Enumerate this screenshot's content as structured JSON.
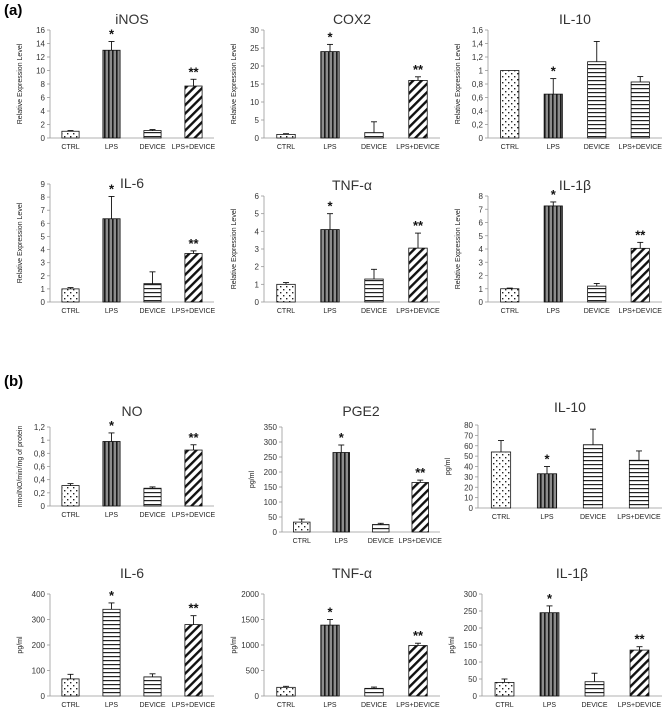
{
  "panels": [
    {
      "label": "(a)"
    },
    {
      "label": "(b)"
    }
  ],
  "chart_data": [
    {
      "type": "bar",
      "panel": "(a)",
      "title": "iNOS",
      "ylabel": "Relative Expression Level",
      "categories": [
        "CTRL",
        "LPS",
        "DEVICE",
        "LPS+DEVICE"
      ],
      "values": [
        1,
        13,
        1.1,
        7.7
      ],
      "errors": [
        0.1,
        1.3,
        0.15,
        1.0
      ],
      "significance": [
        "",
        "*",
        "",
        "**"
      ],
      "ylim": [
        0,
        16
      ],
      "yticks": [
        0,
        2,
        4,
        6,
        8,
        10,
        12,
        14,
        16
      ],
      "yticklabels": [
        "0",
        "2",
        "4",
        "6",
        "8",
        "10",
        "12",
        "14",
        "16"
      ],
      "patterns": [
        "dots",
        "vstripe",
        "hstripe",
        "diag"
      ]
    },
    {
      "type": "bar",
      "panel": "(a)",
      "title": "COX2",
      "ylabel": "Relative Expression Level",
      "categories": [
        "CTRL",
        "LPS",
        "DEVICE",
        "LPS+DEVICE"
      ],
      "values": [
        1,
        24,
        1.5,
        16
      ],
      "errors": [
        0.2,
        2.0,
        3.0,
        1.0
      ],
      "significance": [
        "",
        "*",
        "",
        "**"
      ],
      "ylim": [
        0,
        30
      ],
      "yticks": [
        0,
        5,
        10,
        15,
        20,
        25,
        30
      ],
      "yticklabels": [
        "0",
        "5",
        "10",
        "15",
        "20",
        "25",
        "30"
      ],
      "patterns": [
        "dots",
        "vstripe",
        "hstripe",
        "diag"
      ]
    },
    {
      "type": "bar",
      "panel": "(a)",
      "title": "IL-10",
      "ylabel": "Relative Expression Level",
      "categories": [
        "CTRL",
        "LPS",
        "DEVICE",
        "LPS+DEVICE"
      ],
      "values": [
        1,
        0.65,
        1.13,
        0.83
      ],
      "errors": [
        0.0,
        0.23,
        0.3,
        0.08
      ],
      "significance": [
        "",
        "*",
        "",
        ""
      ],
      "ylim": [
        0,
        1.6
      ],
      "yticks": [
        0,
        0.2,
        0.4,
        0.6,
        0.8,
        1,
        1.2,
        1.4,
        1.6
      ],
      "yticklabels": [
        "0",
        "0,2",
        "0,4",
        "0,6",
        "0,8",
        "1",
        "1,2",
        "1,4",
        "1,6"
      ],
      "patterns": [
        "dots",
        "vstripe",
        "hstripe",
        "hstripe"
      ]
    },
    {
      "type": "bar",
      "panel": "(a)",
      "title": "IL-6",
      "ylabel": "Relative Expression Level",
      "categories": [
        "CTRL",
        "LPS",
        "DEVICE",
        "LPS+DEVICE"
      ],
      "values": [
        1,
        6.35,
        1.4,
        3.7
      ],
      "errors": [
        0.1,
        1.7,
        0.9,
        0.2
      ],
      "significance": [
        "",
        "*",
        "",
        "**"
      ],
      "ylim": [
        0,
        9
      ],
      "yticks": [
        0,
        1,
        2,
        3,
        4,
        5,
        6,
        7,
        8,
        9
      ],
      "yticklabels": [
        "0",
        "1",
        "2",
        "3",
        "4",
        "5",
        "6",
        "7",
        "8",
        "9"
      ],
      "patterns": [
        "dots",
        "vstripe",
        "hstripe",
        "diag"
      ]
    },
    {
      "type": "bar",
      "panel": "(a)",
      "title": "TNF-α",
      "ylabel": "Relative Expression Level",
      "categories": [
        "CTRL",
        "LPS",
        "DEVICE",
        "LPS+DEVICE"
      ],
      "values": [
        1,
        4.1,
        1.3,
        3.05
      ],
      "errors": [
        0.1,
        0.9,
        0.55,
        0.85
      ],
      "significance": [
        "",
        "*",
        "",
        "**"
      ],
      "ylim": [
        0,
        6
      ],
      "yticks": [
        0,
        1,
        2,
        3,
        4,
        5,
        6
      ],
      "yticklabels": [
        "0",
        "1",
        "2",
        "3",
        "4",
        "5",
        "6"
      ],
      "patterns": [
        "dots",
        "vstripe",
        "hstripe",
        "diag"
      ]
    },
    {
      "type": "bar",
      "panel": "(a)",
      "title": "IL-1β",
      "ylabel": "Relative Expression Level",
      "categories": [
        "CTRL",
        "LPS",
        "DEVICE",
        "LPS+DEVICE"
      ],
      "values": [
        1,
        7.25,
        1.2,
        4.05
      ],
      "errors": [
        0.05,
        0.3,
        0.2,
        0.45
      ],
      "significance": [
        "",
        "*",
        "",
        "**"
      ],
      "ylim": [
        0,
        8
      ],
      "yticks": [
        0,
        1,
        2,
        3,
        4,
        5,
        6,
        7,
        8
      ],
      "yticklabels": [
        "0",
        "1",
        "2",
        "3",
        "4",
        "5",
        "6",
        "7",
        "8"
      ],
      "patterns": [
        "dots",
        "vstripe",
        "hstripe",
        "diag"
      ]
    },
    {
      "type": "bar",
      "panel": "(b)",
      "title": "NO",
      "ylabel": "nmolNO/min/mg of protein",
      "categories": [
        "CTRL",
        "LPS",
        "DEVICE",
        "LPS+DEVICE"
      ],
      "values": [
        0.31,
        0.98,
        0.27,
        0.85
      ],
      "errors": [
        0.03,
        0.13,
        0.02,
        0.08
      ],
      "significance": [
        "",
        "*",
        "",
        "**"
      ],
      "ylim": [
        0,
        1.2
      ],
      "yticks": [
        0,
        0.2,
        0.4,
        0.6,
        0.8,
        1,
        1.2
      ],
      "yticklabels": [
        "0",
        "0,2",
        "0,4",
        "0,6",
        "0,8",
        "1",
        "1,2"
      ],
      "patterns": [
        "dots",
        "vstripe",
        "hstripe",
        "diag"
      ]
    },
    {
      "type": "bar",
      "panel": "(b)",
      "title": "PGE2",
      "ylabel": "pg/ml",
      "categories": [
        "CTRL",
        "LPS",
        "DEVICE",
        "LPS+DEVICE"
      ],
      "values": [
        33,
        265,
        25,
        165
      ],
      "errors": [
        10,
        25,
        4,
        8
      ],
      "significance": [
        "",
        "*",
        "",
        "**"
      ],
      "ylim": [
        0,
        350
      ],
      "yticks": [
        0,
        50,
        100,
        150,
        200,
        250,
        300,
        350
      ],
      "yticklabels": [
        "0",
        "50",
        "100",
        "150",
        "200",
        "250",
        "300",
        "350"
      ],
      "patterns": [
        "dots",
        "vstripe",
        "hstripe",
        "diag"
      ]
    },
    {
      "type": "bar",
      "panel": "(b)",
      "title": "IL-10",
      "ylabel": "pg/ml",
      "categories": [
        "CTRL",
        "LPS",
        "DEVICE",
        "LPS+DEVICE"
      ],
      "values": [
        54,
        33,
        61,
        46
      ],
      "errors": [
        11,
        7,
        15,
        9
      ],
      "significance": [
        "",
        "*",
        "",
        ""
      ],
      "ylim": [
        0,
        80
      ],
      "yticks": [
        0,
        10,
        20,
        30,
        40,
        50,
        60,
        70,
        80
      ],
      "yticklabels": [
        "0",
        "10",
        "20",
        "30",
        "40",
        "50",
        "60",
        "70",
        "80"
      ],
      "patterns": [
        "dots",
        "vstripe",
        "hstripe",
        "hstripe"
      ]
    },
    {
      "type": "bar",
      "panel": "(b)",
      "title": "IL-6",
      "ylabel": "pg/ml",
      "categories": [
        "CTRL",
        "LPS",
        "DEVICE",
        "LPS+DEVICE"
      ],
      "values": [
        67,
        340,
        75,
        280
      ],
      "errors": [
        18,
        25,
        12,
        35
      ],
      "significance": [
        "",
        "*",
        "",
        "**"
      ],
      "ylim": [
        0,
        400
      ],
      "yticks": [
        0,
        100,
        200,
        300,
        400
      ],
      "yticklabels": [
        "0",
        "100",
        "200",
        "300",
        "400"
      ],
      "patterns": [
        "dots",
        "hstripe",
        "hstripe",
        "diag"
      ]
    },
    {
      "type": "bar",
      "panel": "(b)",
      "title": "TNF-α",
      "ylabel": "pg/ml",
      "categories": [
        "CTRL",
        "LPS",
        "DEVICE",
        "LPS+DEVICE"
      ],
      "values": [
        170,
        1390,
        150,
        990
      ],
      "errors": [
        20,
        110,
        25,
        45
      ],
      "significance": [
        "",
        "*",
        "",
        "**"
      ],
      "ylim": [
        0,
        2000
      ],
      "yticks": [
        0,
        500,
        1000,
        1500,
        2000
      ],
      "yticklabels": [
        "0",
        "500",
        "1000",
        "1500",
        "2000"
      ],
      "patterns": [
        "dots",
        "vstripe",
        "hstripe",
        "diag"
      ]
    },
    {
      "type": "bar",
      "panel": "(b)",
      "title": "IL-1β",
      "ylabel": "pg/ml",
      "categories": [
        "CTRL",
        "LPS",
        "DEVICE",
        "LPS+DEVICE"
      ],
      "values": [
        40,
        245,
        42,
        135
      ],
      "errors": [
        10,
        20,
        25,
        10
      ],
      "significance": [
        "",
        "*",
        "",
        "**"
      ],
      "ylim": [
        0,
        300
      ],
      "yticks": [
        0,
        50,
        100,
        150,
        200,
        250,
        300
      ],
      "yticklabels": [
        "0",
        "50",
        "100",
        "150",
        "200",
        "250",
        "300"
      ],
      "patterns": [
        "dots",
        "vstripe",
        "hstripe",
        "diag"
      ]
    }
  ]
}
